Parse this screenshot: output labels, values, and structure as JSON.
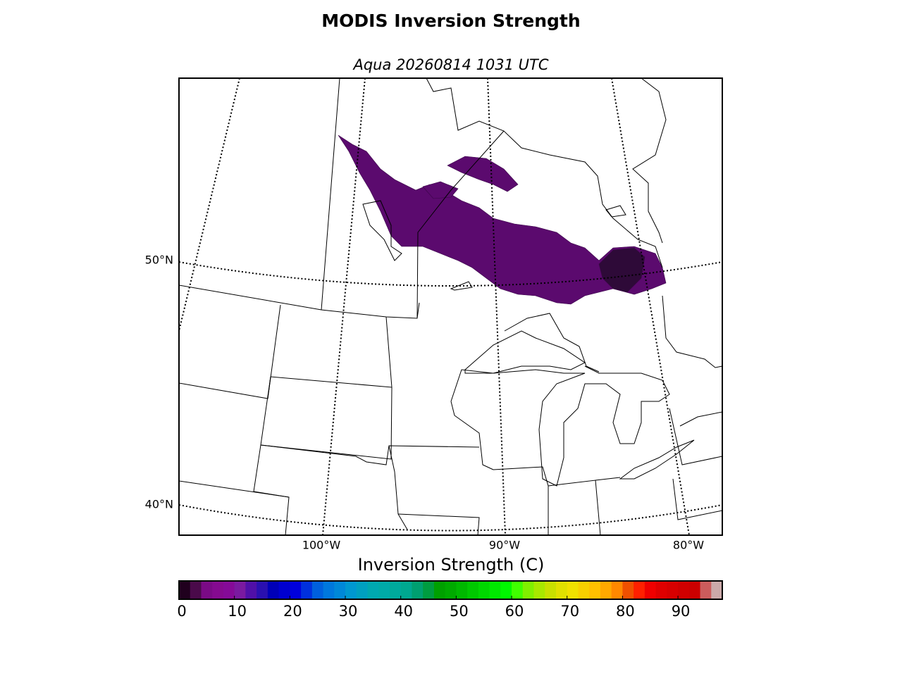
{
  "header": {
    "title": "MODIS Inversion Strength",
    "subtitle": "Aqua 20260814 1031 UTC"
  },
  "map": {
    "lat_labels": [
      "50°N",
      "40°N"
    ],
    "lon_labels": [
      "100°W",
      "90°W",
      "80°W"
    ]
  },
  "colorbar": {
    "label": "Inversion Strength (C)",
    "lim": [
      0,
      98
    ],
    "ticks": [
      0,
      10,
      20,
      30,
      40,
      50,
      60,
      70,
      80,
      90
    ],
    "colors": [
      "#20001e",
      "#4a0a4a",
      "#7a0a86",
      "#850a90",
      "#850a98",
      "#7a1aa0",
      "#5010a8",
      "#2a10b0",
      "#0000b8",
      "#0000d0",
      "#0000dd",
      "#0030dd",
      "#0060dd",
      "#0078dd",
      "#0088d8",
      "#0098d0",
      "#00a0c0",
      "#00a8b0",
      "#00aaa8",
      "#00aa9c",
      "#00a890",
      "#00a070",
      "#009c40",
      "#00a000",
      "#00aa00",
      "#00b800",
      "#00c800",
      "#00d800",
      "#00e800",
      "#00f800",
      "#40ff00",
      "#80f000",
      "#a8e800",
      "#c8e000",
      "#e0e000",
      "#f0e000",
      "#f8d000",
      "#ffc000",
      "#ffa800",
      "#ff8800",
      "#f05000",
      "#ff2000",
      "#f00000",
      "#e00000",
      "#d80000",
      "#d00000",
      "#cc0000",
      "#cc5c5c",
      "#ccaaaa"
    ]
  }
}
